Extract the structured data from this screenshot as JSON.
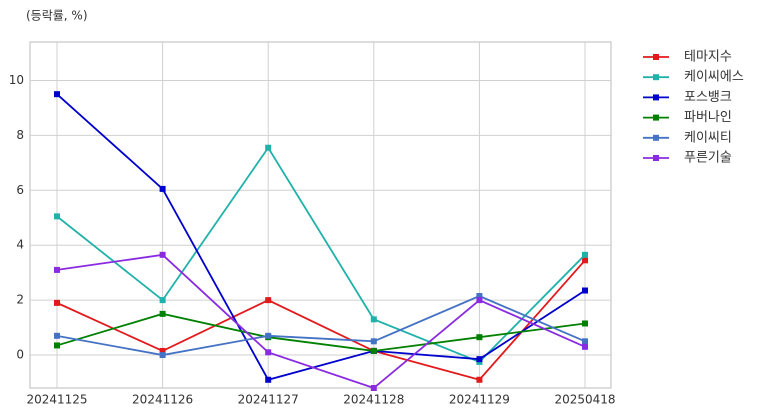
{
  "chart_data": {
    "type": "line",
    "unit_label": "(등락률, %)",
    "categories": [
      "20241125",
      "20241126",
      "20241127",
      "20241128",
      "20241129",
      "20250418"
    ],
    "series": [
      {
        "name": "테마지수",
        "color": "#e31a1c",
        "values": [
          1.9,
          0.15,
          2.0,
          0.15,
          -0.9,
          3.45
        ]
      },
      {
        "name": "케이씨에스",
        "color": "#20b2aa",
        "values": [
          5.05,
          2.0,
          7.55,
          1.3,
          -0.25,
          3.65
        ]
      },
      {
        "name": "포스뱅크",
        "color": "#0000cd",
        "values": [
          9.5,
          6.05,
          -0.9,
          0.15,
          -0.15,
          2.35
        ]
      },
      {
        "name": "파버나인",
        "color": "#008000",
        "values": [
          0.35,
          1.5,
          0.65,
          0.15,
          0.65,
          1.15
        ]
      },
      {
        "name": "케이씨티",
        "color": "#4472c4",
        "values": [
          0.7,
          0.0,
          0.7,
          0.5,
          2.15,
          0.5
        ]
      },
      {
        "name": "푸른기술",
        "color": "#8a2be2",
        "values": [
          3.1,
          3.65,
          0.1,
          -1.2,
          2.0,
          0.3
        ]
      }
    ],
    "ylim": [
      -1.2,
      11.4
    ],
    "yticks": [
      0,
      2,
      4,
      6,
      8,
      10
    ],
    "grid": true,
    "legend": "outside-right"
  }
}
